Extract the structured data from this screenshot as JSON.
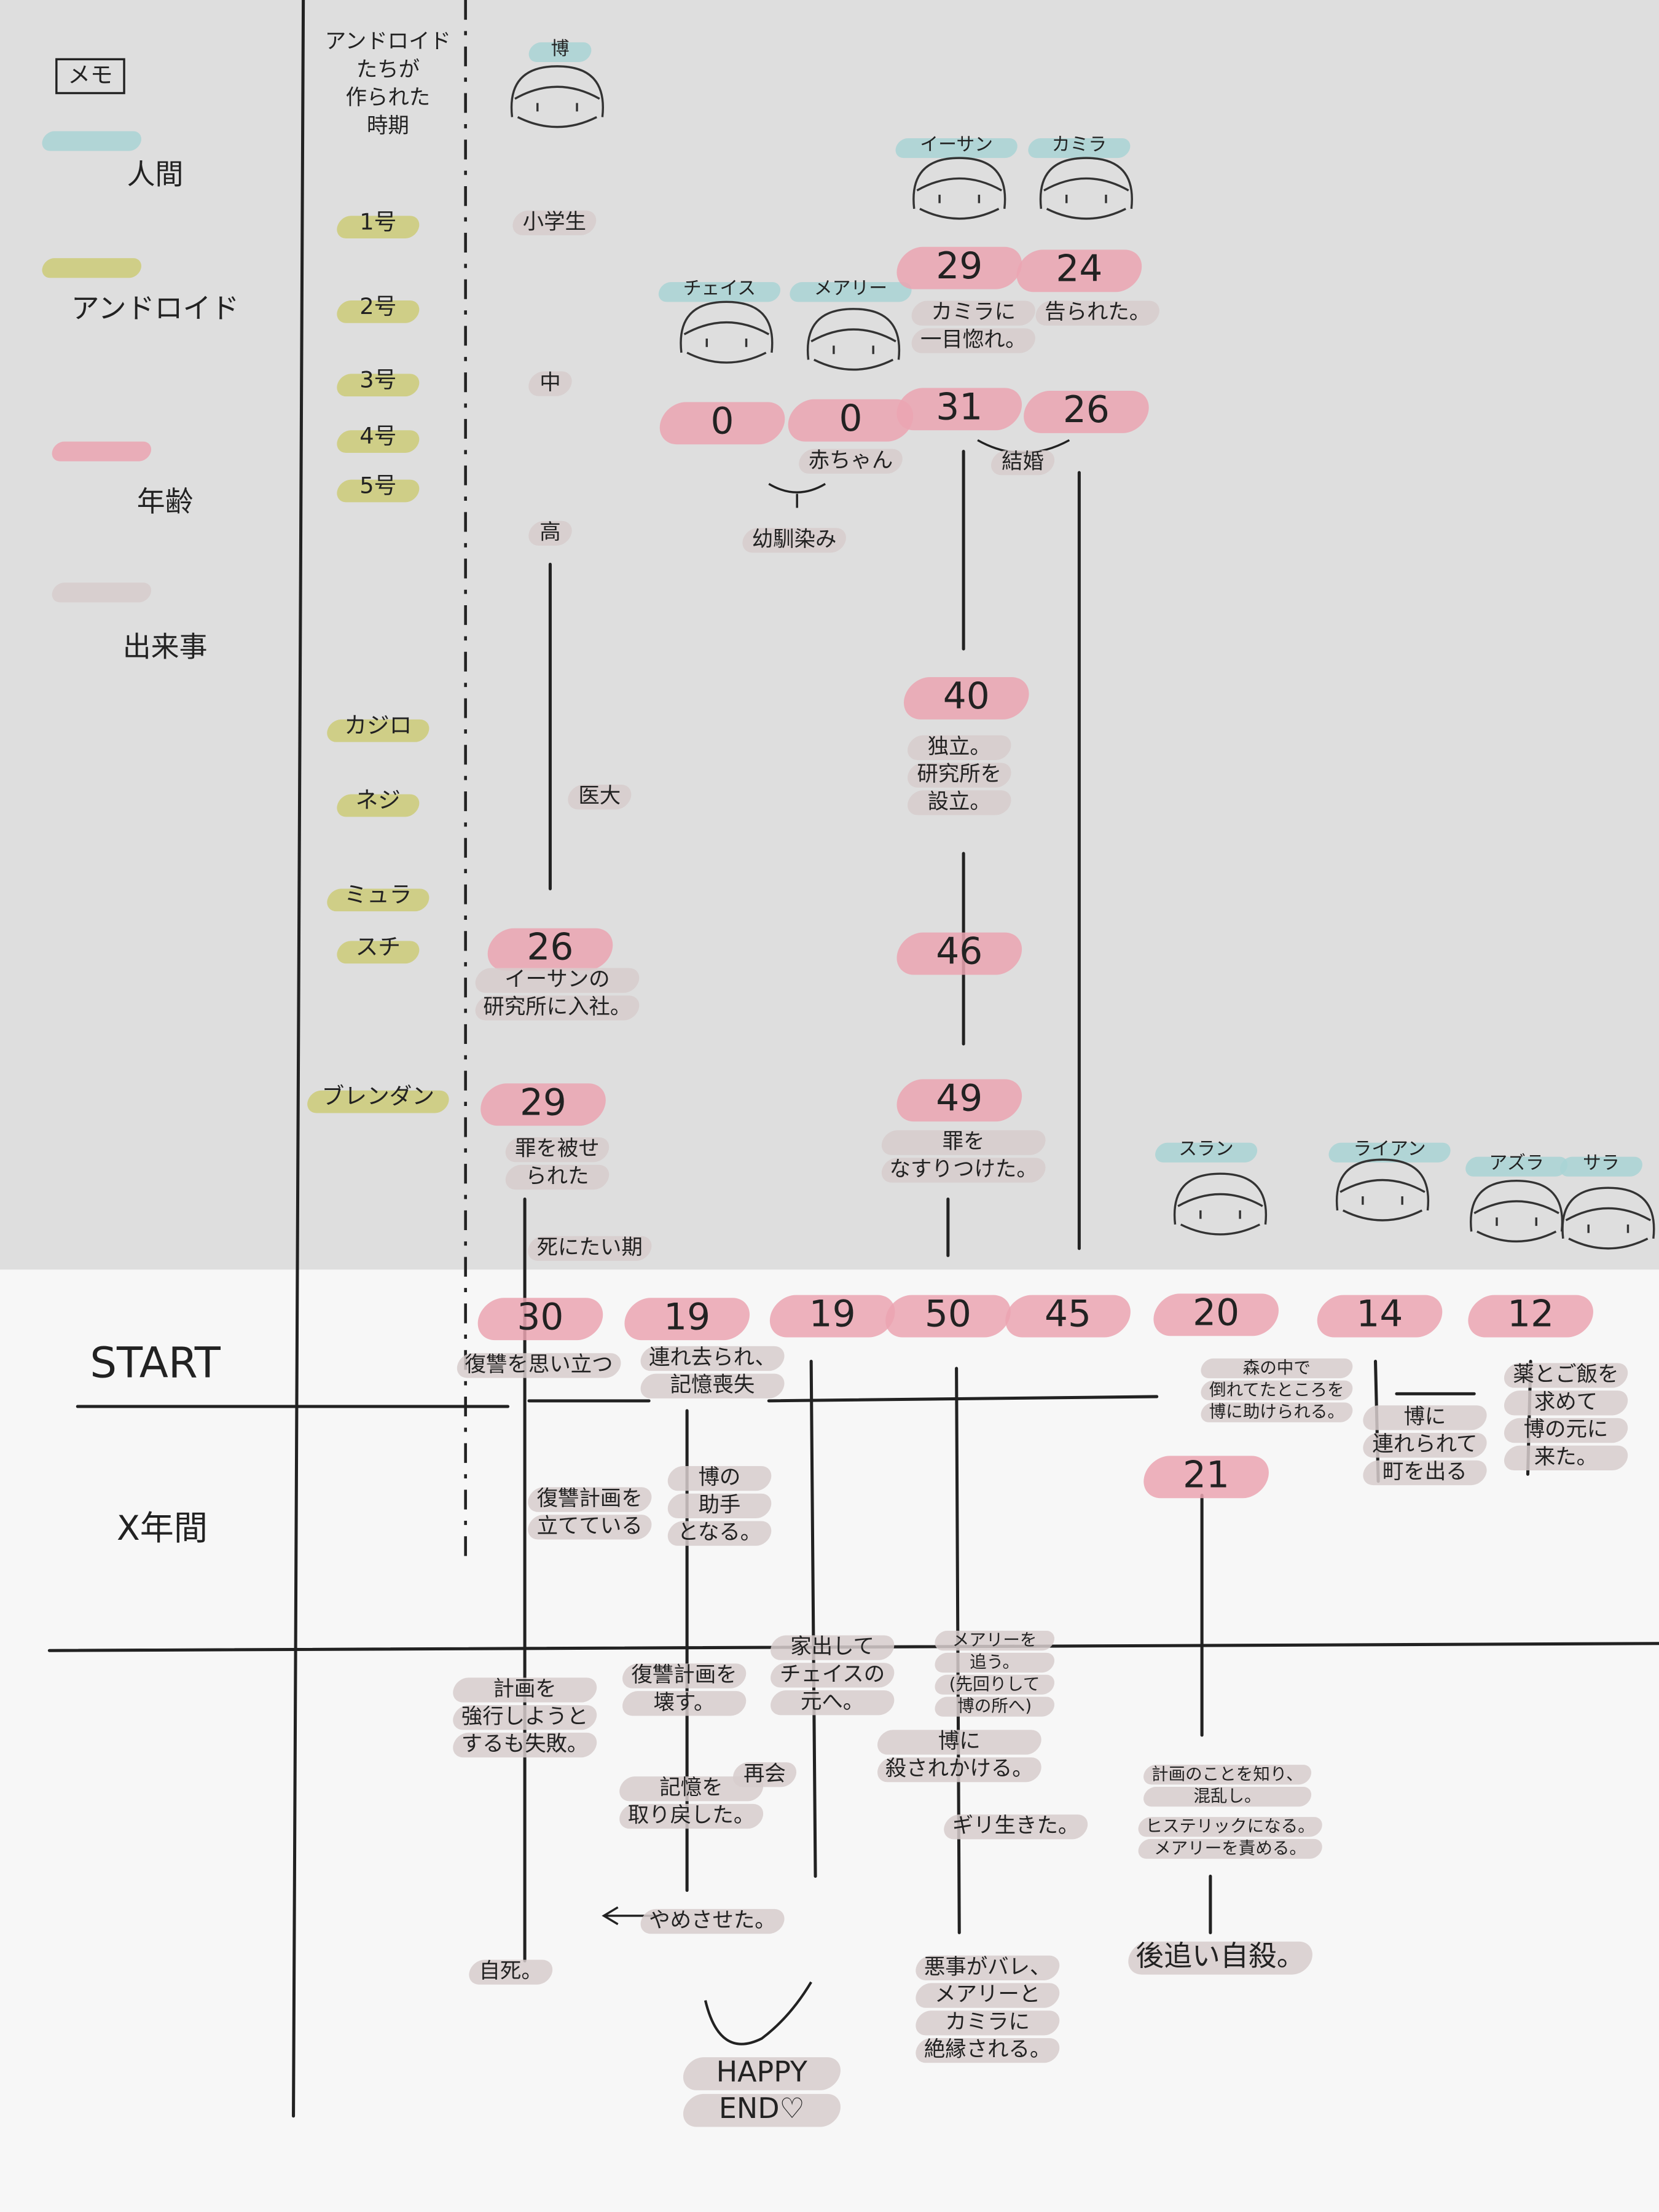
{
  "legend": {
    "title": "メモ",
    "items": [
      {
        "label": "人間",
        "color": "#a9d3d5"
      },
      {
        "label": "アンドロイド",
        "color": "#cccb78"
      },
      {
        "label": "年齢",
        "color": "#eba5b1"
      },
      {
        "label": "出来事",
        "color": "#d7cccc"
      }
    ]
  },
  "android_header": [
    "アンドロイド",
    "たちが",
    "作られた",
    "時期"
  ],
  "androids": [
    "1号",
    "2号",
    "3号",
    "4号",
    "5号",
    "カジロ",
    "ネジ",
    "ミュラ",
    "スチ",
    "ブレンダン"
  ],
  "phases": [
    "START",
    "X年間"
  ],
  "characters": [
    "博",
    "イーサン",
    "カミラ",
    "チェイス",
    "メアリー",
    "スラン",
    "ライアン",
    "アズラ",
    "サラ"
  ],
  "ages": [
    26,
    29,
    0,
    0,
    29,
    31,
    40,
    46,
    49,
    24,
    26,
    30,
    19,
    19,
    50,
    45,
    20,
    14,
    12,
    21
  ],
  "events": [
    [
      "小学生"
    ],
    [
      "中"
    ],
    [
      "高"
    ],
    [
      "医大"
    ],
    [
      "イーサンの",
      "研究所に入社。"
    ],
    [
      "罪を被せ",
      "られた"
    ],
    [
      "死にたい期"
    ],
    [
      "赤ちゃん"
    ],
    [
      "幼馴染み"
    ],
    [
      "カミラに",
      "一目惚れ。"
    ],
    [
      "告られた。"
    ],
    [
      "結婚"
    ],
    [
      "独立。",
      "研究所を",
      "設立。"
    ],
    [
      "罪を",
      "なすりつけた。"
    ],
    [
      "復讐を思い立つ"
    ],
    [
      "連れ去られ、",
      "記憶喪失"
    ],
    [
      "森の中で",
      "倒れてたところを",
      "博に助けられる。"
    ],
    [
      "博に",
      "連れられて",
      "町を出る"
    ],
    [
      "薬とご飯を",
      "求めて",
      "博の元に",
      "来た。"
    ],
    [
      "復讐計画を",
      "立てている"
    ],
    [
      "博の",
      "助手",
      "となる。"
    ],
    [
      "計画を",
      "強行しようと",
      "するも失敗。"
    ],
    [
      "復讐計画を",
      "壊す。"
    ],
    [
      "家出して",
      "チェイスの",
      "元へ。"
    ],
    [
      "メアリーを",
      "追う。",
      "(先回りして",
      "博の所へ)"
    ],
    [
      "博に",
      "殺されかける。"
    ],
    [
      "記憶を",
      "取り戻した。"
    ],
    [
      "再会"
    ],
    [
      "ギリ生きた。"
    ],
    [
      "計画のことを知り、",
      "混乱し。"
    ],
    [
      "ヒステリックになる。",
      "メアリーを責める。"
    ],
    [
      "やめさせた。"
    ],
    [
      "自死。"
    ],
    [
      "悪事がバレ、",
      "メアリーと",
      "カミラに",
      "絶縁される。"
    ],
    [
      "後追い自殺。"
    ],
    [
      "HAPPY",
      "END♡"
    ]
  ]
}
